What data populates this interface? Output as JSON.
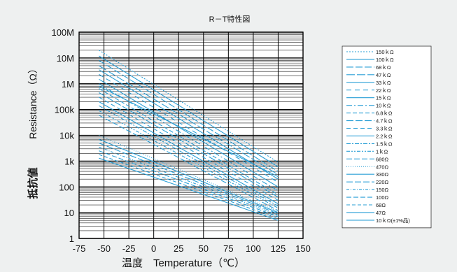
{
  "chart_data": {
    "type": "line",
    "title": "R－T特性図",
    "xlabel": "温度　Temperature（℃）",
    "ylabel_jp": "抵抗値",
    "ylabel_en": "Resistance（Ω）",
    "x_ticks": [
      "-75",
      "-50",
      "-25",
      "0",
      "25",
      "50",
      "75",
      "100",
      "125",
      "150"
    ],
    "x_tick_values": [
      -75,
      -50,
      -25,
      0,
      25,
      50,
      75,
      100,
      125,
      150
    ],
    "y_ticks": [
      "1",
      "10",
      "100",
      "1k",
      "10k",
      "100k",
      "1M",
      "10M",
      "100M"
    ],
    "y_tick_values": [
      1,
      10,
      100,
      1000,
      10000,
      100000,
      1000000,
      10000000,
      100000000
    ],
    "xlim": [
      -75,
      150
    ],
    "ylim": [
      1,
      100000000
    ],
    "y_scale": "log",
    "grid": true,
    "legend_position": "right",
    "line_color": "#2a9fd6",
    "series": [
      {
        "name": "150ｋΩ",
        "dash": "2,2",
        "x": [
          -55,
          125
        ],
        "values": [
          20000000,
          900
        ]
      },
      {
        "name": "100ｋΩ",
        "dash": "",
        "x": [
          -55,
          125
        ],
        "values": [
          12000000,
          600
        ]
      },
      {
        "name": "68ｋΩ",
        "dash": "10,3",
        "x": [
          -55,
          125
        ],
        "values": [
          8000000,
          400
        ]
      },
      {
        "name": "47ｋΩ",
        "dash": "12,3",
        "x": [
          -55,
          125
        ],
        "values": [
          5000000,
          300
        ]
      },
      {
        "name": "33ｋΩ",
        "dash": "",
        "x": [
          -55,
          125
        ],
        "values": [
          3500000,
          200
        ]
      },
      {
        "name": "22ｋΩ",
        "dash": "7,5",
        "x": [
          -55,
          125
        ],
        "values": [
          2300000,
          150
        ]
      },
      {
        "name": "15ｋΩ",
        "dash": "",
        "x": [
          -55,
          125
        ],
        "values": [
          1500000,
          100
        ]
      },
      {
        "name": "10ｋΩ",
        "dash": "8,3,2,3",
        "x": [
          -55,
          125
        ],
        "values": [
          1000000,
          70
        ]
      },
      {
        "name": "6.8ｋΩ",
        "dash": "6,3",
        "x": [
          -55,
          125
        ],
        "values": [
          650000,
          50
        ]
      },
      {
        "name": "4.7ｋΩ",
        "dash": "10,3",
        "x": [
          -55,
          125
        ],
        "values": [
          450000,
          40
        ]
      },
      {
        "name": "3.3ｋΩ",
        "dash": "6,4",
        "x": [
          -55,
          125
        ],
        "values": [
          300000,
          30
        ]
      },
      {
        "name": "2.2ｋΩ",
        "dash": "",
        "x": [
          -55,
          125
        ],
        "values": [
          200000,
          22
        ]
      },
      {
        "name": "1.5ｋΩ",
        "dash": "6,2,2,2",
        "x": [
          -55,
          125
        ],
        "values": [
          140000,
          18
        ]
      },
      {
        "name": "1ｋΩ",
        "dash": "5,2,2,2,2,2",
        "x": [
          -55,
          125
        ],
        "values": [
          90000,
          15
        ]
      },
      {
        "name": "680Ω",
        "dash": "8,3",
        "x": [
          -55,
          125
        ],
        "values": [
          60000,
          12
        ]
      },
      {
        "name": "470Ω",
        "dash": "1,2",
        "x": [
          -55,
          125
        ],
        "values": [
          10000,
          11
        ]
      },
      {
        "name": "330Ω",
        "dash": "",
        "x": [
          -55,
          125
        ],
        "values": [
          7000,
          10
        ]
      },
      {
        "name": "220Ω",
        "dash": "9,3",
        "x": [
          -55,
          125
        ],
        "values": [
          5000,
          9
        ]
      },
      {
        "name": "150Ω",
        "dash": "4,2,1,2",
        "x": [
          -55,
          125
        ],
        "values": [
          3500,
          8
        ]
      },
      {
        "name": "100Ω",
        "dash": "7,3",
        "x": [
          -55,
          125
        ],
        "values": [
          2500,
          7
        ]
      },
      {
        "name": "68Ω",
        "dash": "5,3",
        "x": [
          -55,
          125
        ],
        "values": [
          1800,
          6
        ]
      },
      {
        "name": "47Ω",
        "dash": "",
        "x": [
          -55,
          125
        ],
        "values": [
          1300,
          5
        ]
      },
      {
        "name": "10ｋΩ(±1%品)",
        "dash": "",
        "x": [
          -55,
          125
        ],
        "values": [
          800000,
          250
        ]
      }
    ]
  }
}
